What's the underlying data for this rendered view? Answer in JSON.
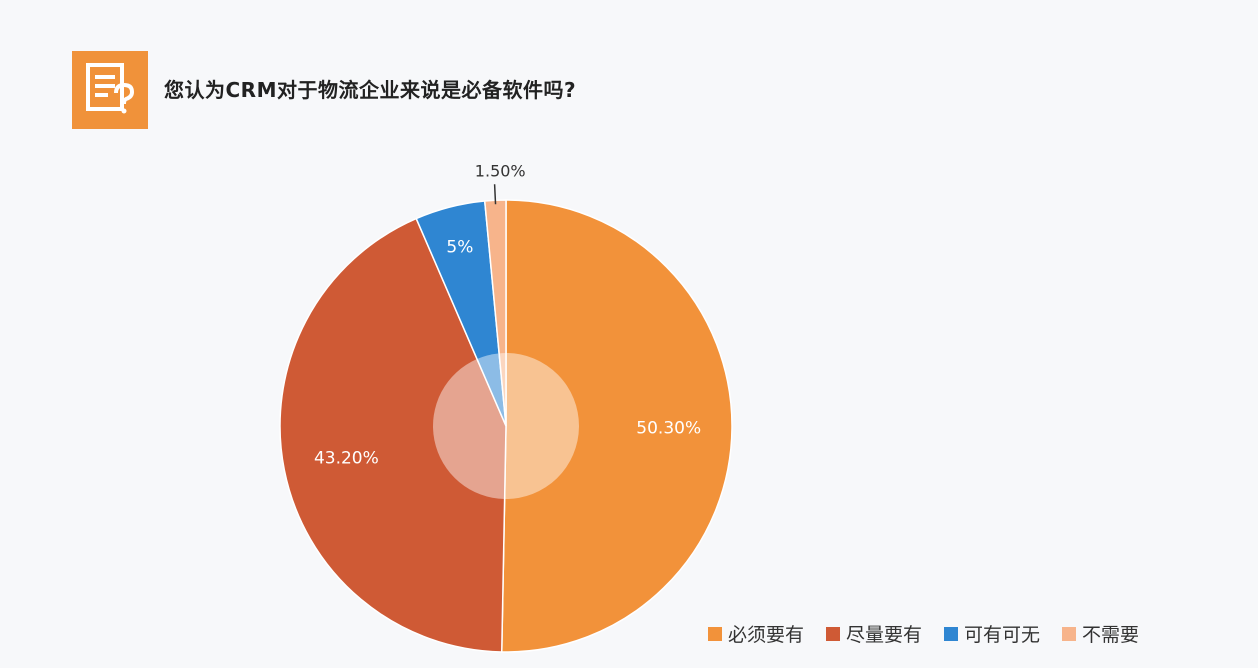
{
  "header": {
    "title": "您认为CRM对于物流企业来说是必备软件吗?",
    "icon": "document-question-icon",
    "icon_color": "#f0923a"
  },
  "chart_data": {
    "type": "pie",
    "categories": [
      "必须要有",
      "尽量要有",
      "可有可无",
      "不需要"
    ],
    "values": [
      50.3,
      43.2,
      5.0,
      1.5
    ],
    "labels": [
      "50.30%",
      "43.20%",
      "5%",
      "1.50%"
    ],
    "colors": [
      "#f2923a",
      "#cf5a35",
      "#2f86d2",
      "#f7b48b"
    ],
    "inner_overlay": true,
    "legend_position": "bottom-right"
  }
}
